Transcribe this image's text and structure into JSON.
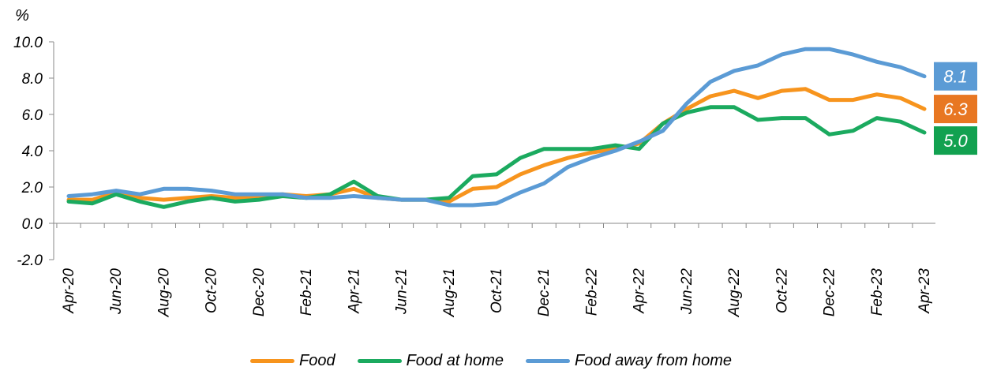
{
  "chart_data": {
    "type": "line",
    "unit_label": "%",
    "ylim": [
      -2.0,
      10.0
    ],
    "yticks": [
      "10.0",
      "8.0",
      "6.0",
      "4.0",
      "2.0",
      "0.0",
      "-2.0"
    ],
    "ytick_values": [
      10,
      8,
      6,
      4,
      2,
      0,
      -2
    ],
    "x": [
      "Apr-20",
      "May-20",
      "Jun-20",
      "Jul-20",
      "Aug-20",
      "Sep-20",
      "Oct-20",
      "Nov-20",
      "Dec-20",
      "Jan-21",
      "Feb-21",
      "Mar-21",
      "Apr-21",
      "May-21",
      "Jun-21",
      "Jul-21",
      "Aug-21",
      "Sep-21",
      "Oct-21",
      "Nov-21",
      "Dec-21",
      "Jan-22",
      "Feb-22",
      "Mar-22",
      "Apr-22",
      "May-22",
      "Jun-22",
      "Jul-22",
      "Aug-22",
      "Sep-22",
      "Oct-22",
      "Nov-22",
      "Dec-22",
      "Jan-23",
      "Feb-23",
      "Mar-23",
      "Apr-23"
    ],
    "xtick_labels": [
      "Apr-20",
      "Jun-20",
      "Aug-20",
      "Oct-20",
      "Dec-20",
      "Feb-21",
      "Apr-21",
      "Jun-21",
      "Aug-21",
      "Oct-21",
      "Dec-21",
      "Feb-22",
      "Apr-22",
      "Jun-22",
      "Aug-22",
      "Oct-22",
      "Dec-22",
      "Feb-23",
      "Apr-23"
    ],
    "grid": false,
    "legend_position": "bottom",
    "series": [
      {
        "name": "Food",
        "color": "#F7941D",
        "values": [
          1.3,
          1.3,
          1.7,
          1.4,
          1.3,
          1.4,
          1.5,
          1.4,
          1.5,
          1.6,
          1.5,
          1.6,
          1.9,
          1.4,
          1.3,
          1.3,
          1.2,
          1.9,
          2.0,
          2.7,
          3.2,
          3.6,
          3.9,
          4.1,
          4.4,
          5.5,
          6.3,
          7.0,
          7.3,
          6.9,
          7.3,
          7.4,
          6.8,
          6.8,
          7.1,
          6.9,
          6.3
        ],
        "end_label": "6.3",
        "badge_color": "#E87722"
      },
      {
        "name": "Food at home",
        "color": "#1BAA5F",
        "values": [
          1.2,
          1.1,
          1.6,
          1.2,
          0.9,
          1.2,
          1.4,
          1.2,
          1.3,
          1.5,
          1.4,
          1.6,
          2.3,
          1.5,
          1.3,
          1.3,
          1.4,
          2.6,
          2.7,
          3.6,
          4.1,
          4.1,
          4.1,
          4.3,
          4.1,
          5.5,
          6.1,
          6.4,
          6.4,
          5.7,
          5.8,
          5.8,
          4.9,
          5.1,
          5.8,
          5.6,
          5.0
        ],
        "end_label": "5.0",
        "badge_color": "#12A150"
      },
      {
        "name": "Food away from home",
        "color": "#5B9BD5",
        "values": [
          1.5,
          1.6,
          1.8,
          1.6,
          1.9,
          1.9,
          1.8,
          1.6,
          1.6,
          1.6,
          1.4,
          1.4,
          1.5,
          1.4,
          1.3,
          1.3,
          1.0,
          1.0,
          1.1,
          1.7,
          2.2,
          3.1,
          3.6,
          4.0,
          4.5,
          5.1,
          6.6,
          7.8,
          8.4,
          8.7,
          9.3,
          9.6,
          9.6,
          9.3,
          8.9,
          8.6,
          8.1
        ],
        "end_label": "8.1",
        "badge_color": "#5B9BD5"
      }
    ]
  }
}
